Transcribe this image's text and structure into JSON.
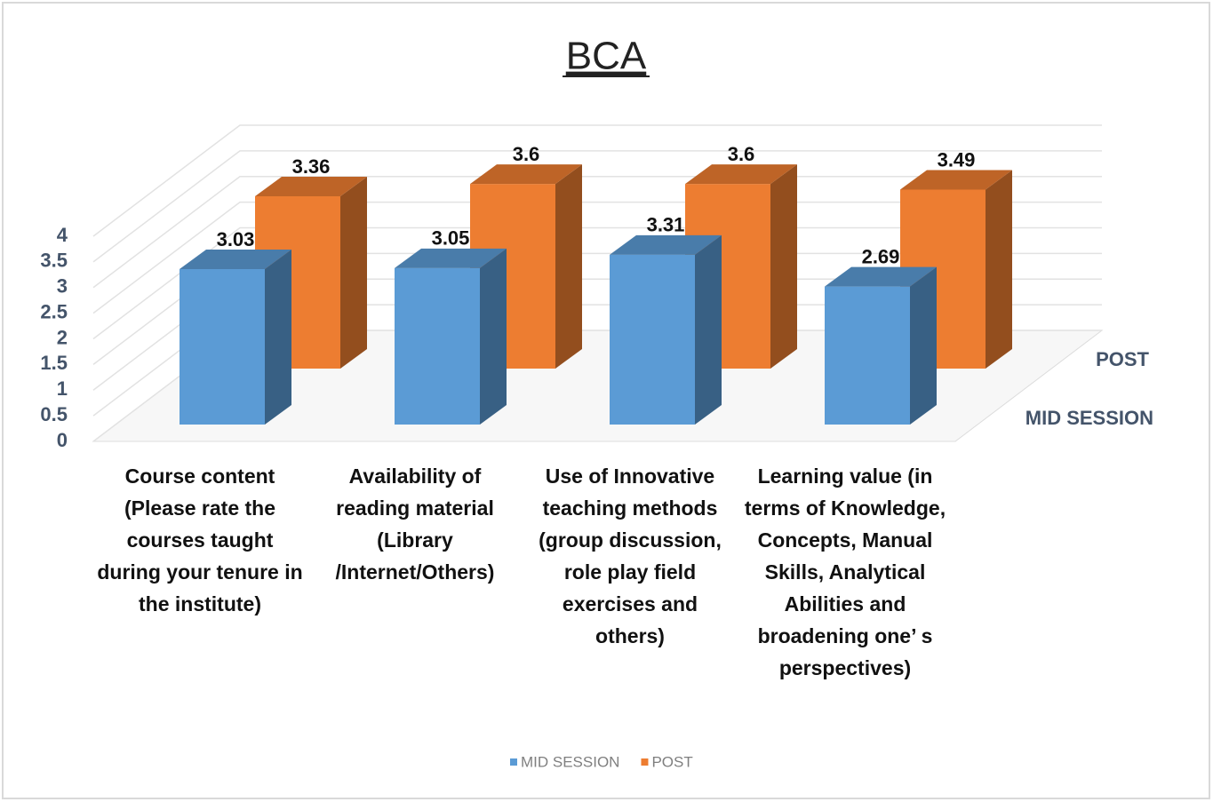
{
  "chart_data": {
    "type": "bar3d",
    "title": "BCA",
    "categories": [
      "Course content (Please rate the courses taught during your tenure in the institute)",
      "Availability of reading material (Library /Internet/Others)",
      "Use of Innovative teaching methods (group discussion, role play field exercises and others)",
      "Learning value (in terms of Knowledge, Concepts, Manual Skills, Analytical Abilities and broadening one’ s perspectives)"
    ],
    "series": [
      {
        "name": "MID SESSION",
        "color": "#5b9bd5",
        "values": [
          3.03,
          3.05,
          3.31,
          2.69
        ]
      },
      {
        "name": "POST",
        "color": "#ed7d31",
        "values": [
          3.36,
          3.6,
          3.6,
          3.49
        ]
      }
    ],
    "ylim": [
      0,
      4
    ],
    "yticks": [
      0,
      0.5,
      1,
      1.5,
      2,
      2.5,
      3,
      3.5,
      4
    ],
    "grid": true,
    "legend": "bottom"
  }
}
